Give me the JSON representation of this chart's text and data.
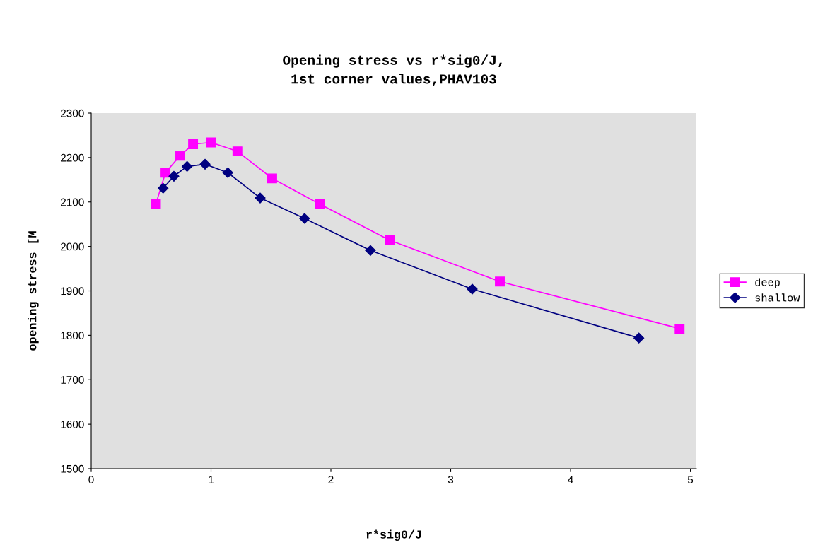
{
  "chart_data": {
    "type": "line",
    "title": "Opening stress vs r*sig0/J,\n1st corner values,PHAV103",
    "xlabel": "r*sig0/J",
    "ylabel": "opening stress [M",
    "xlim": [
      0,
      5.05
    ],
    "ylim": [
      1500,
      2300
    ],
    "xticks": [
      0,
      1,
      2,
      3,
      4,
      5
    ],
    "yticks": [
      1500,
      1600,
      1700,
      1800,
      1900,
      2000,
      2100,
      2200,
      2300
    ],
    "grid": false,
    "legend": "right",
    "series": [
      {
        "name": "deep",
        "color": "#ff00ff",
        "marker": "square",
        "x": [
          0.54,
          0.62,
          0.74,
          0.85,
          1.0,
          1.22,
          1.51,
          1.91,
          2.49,
          3.41,
          4.91
        ],
        "values": [
          2096,
          2166,
          2204,
          2230,
          2234,
          2214,
          2153,
          2095,
          2014,
          1921,
          1815
        ]
      },
      {
        "name": "shallow",
        "color": "#000080",
        "marker": "diamond",
        "x": [
          0.6,
          0.69,
          0.8,
          0.95,
          1.14,
          1.41,
          1.78,
          2.33,
          3.18,
          4.57
        ],
        "values": [
          2131,
          2158,
          2180,
          2185,
          2166,
          2109,
          2063,
          1991,
          1904,
          1794
        ]
      }
    ]
  }
}
